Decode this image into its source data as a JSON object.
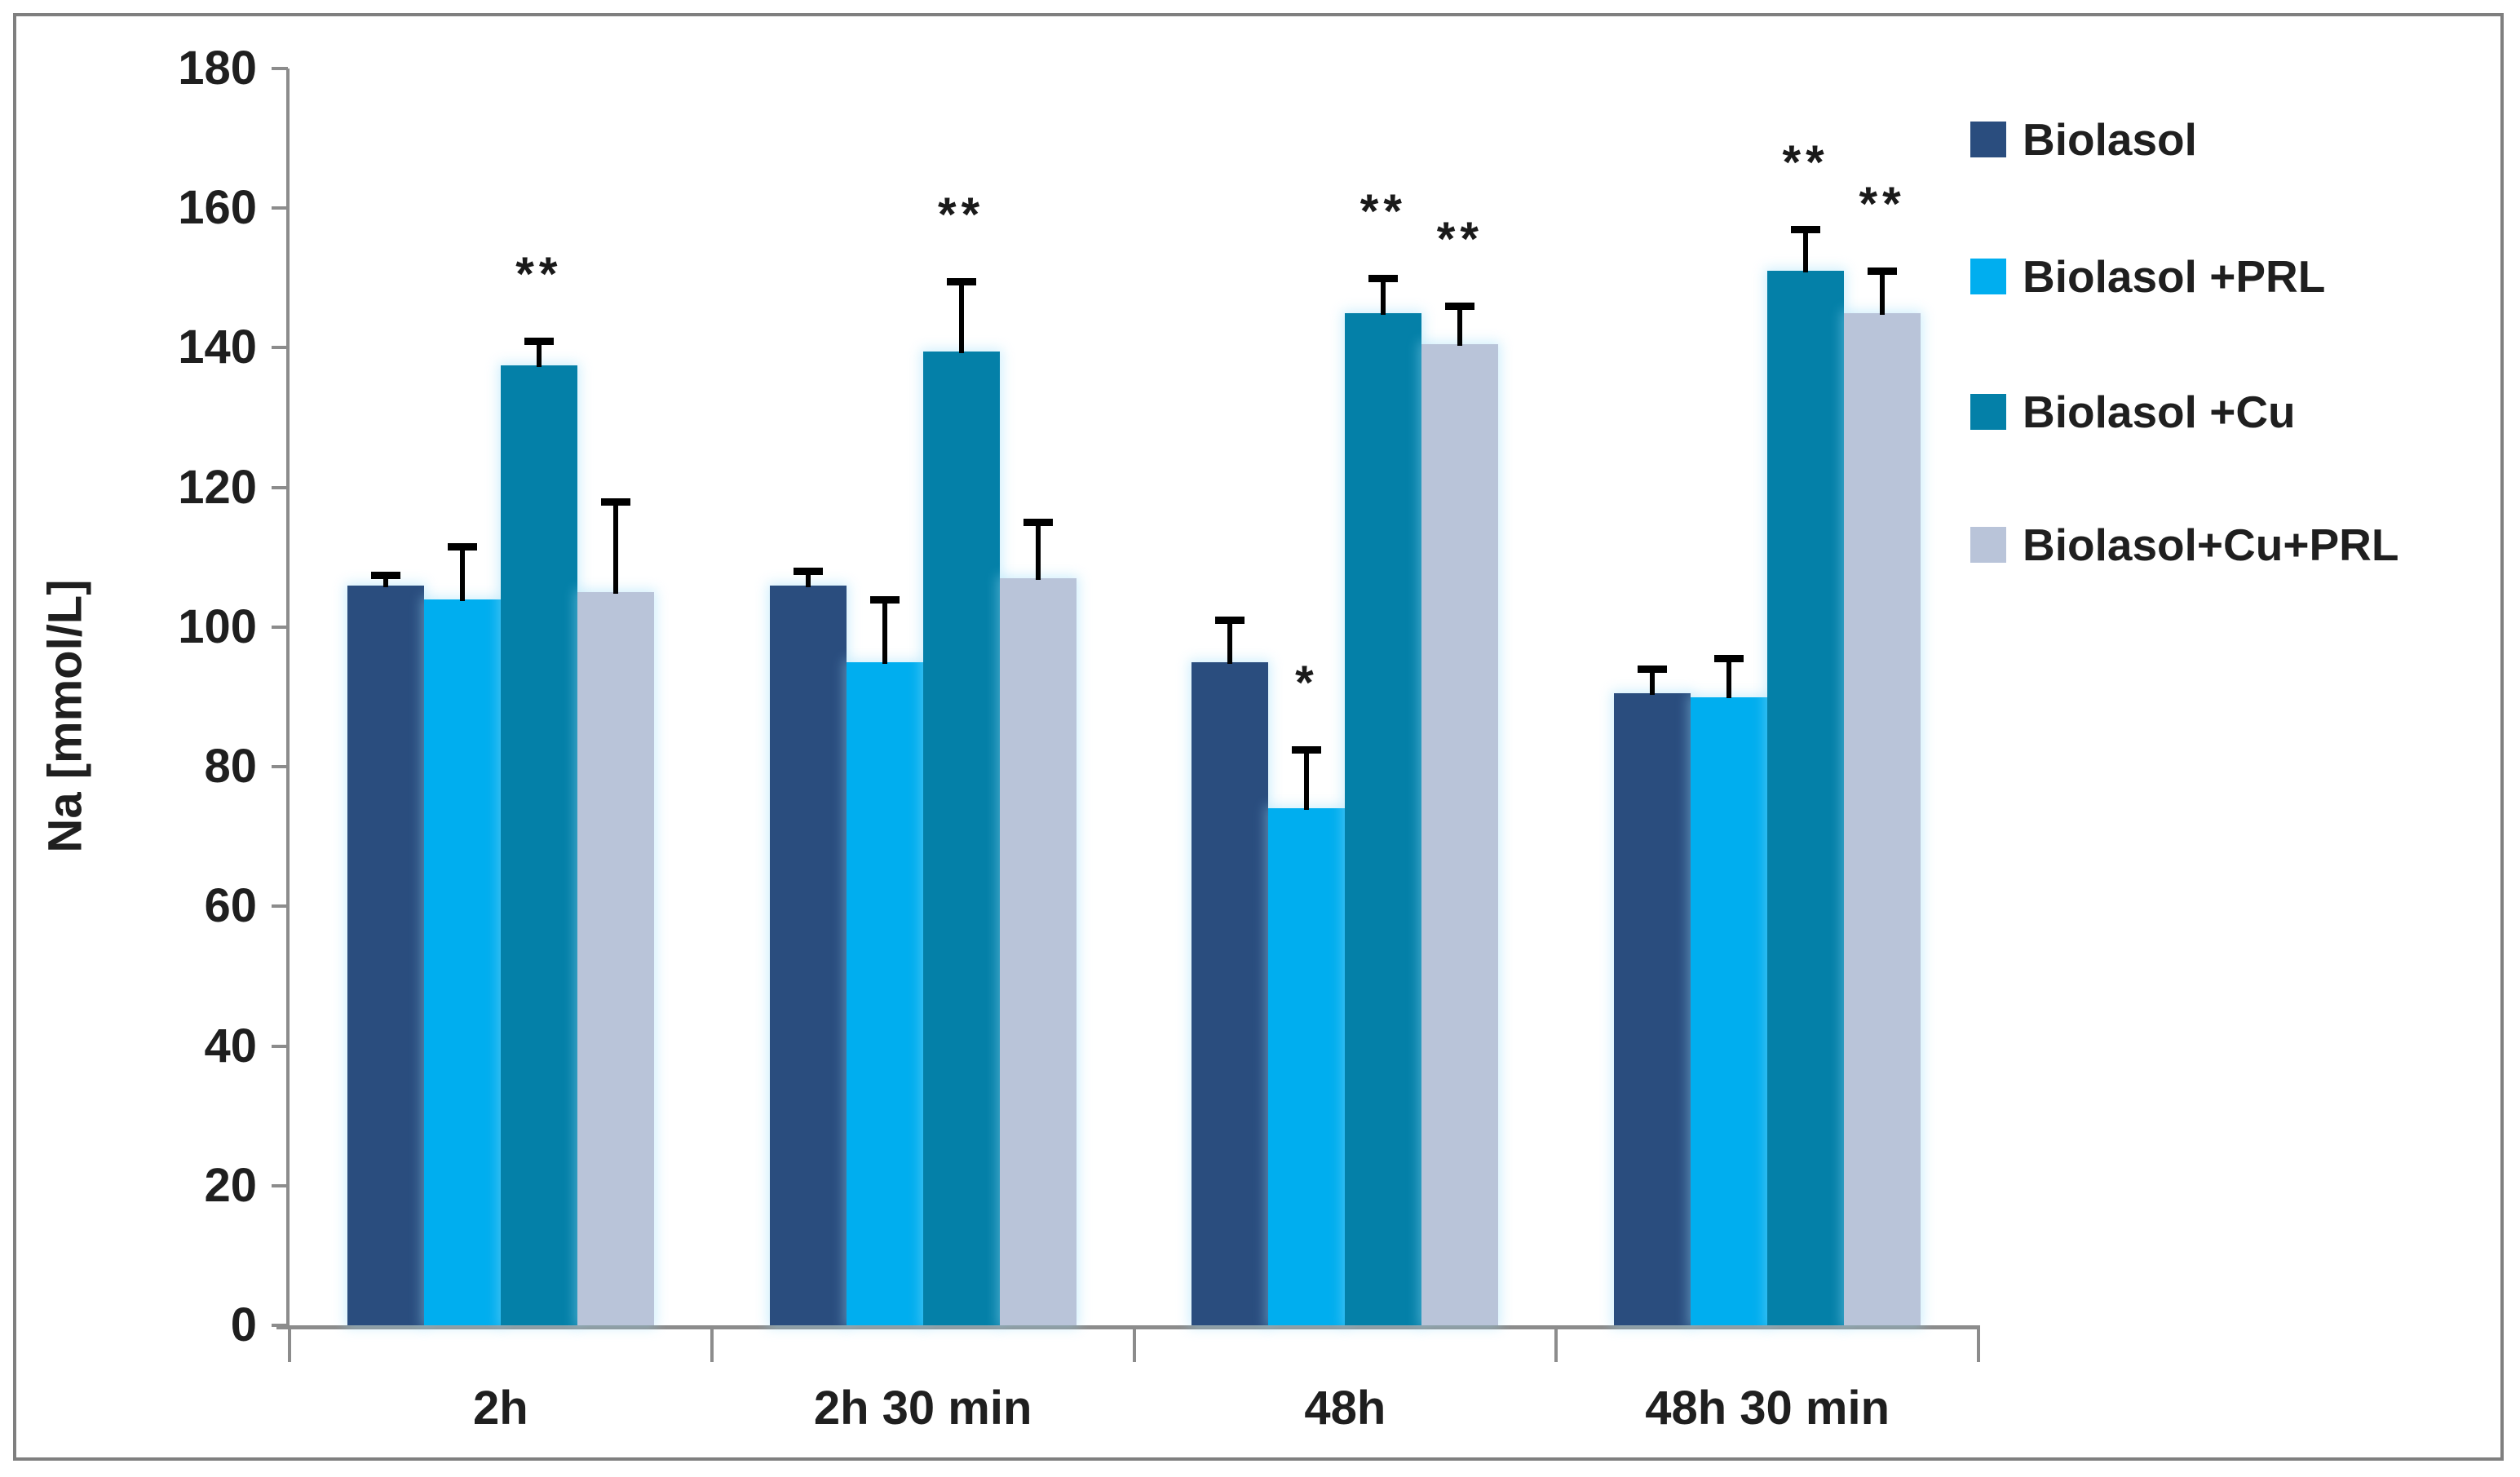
{
  "chart_data": {
    "type": "bar",
    "title": "",
    "xlabel": "",
    "ylabel": "Na [mmol/L]",
    "ylim": [
      0,
      180
    ],
    "ytick_step": 20,
    "grid": false,
    "legend_position": "right",
    "categories": [
      "2h",
      "2h 30 min",
      "48h",
      "48h 30 min"
    ],
    "series": [
      {
        "name": "Biolasol",
        "color": "#2A4D7E",
        "values": [
          106,
          106,
          95,
          90.5
        ],
        "errors_plus": [
          1.5,
          2,
          6,
          3.5
        ],
        "significance": [
          "",
          "",
          "",
          ""
        ]
      },
      {
        "name": "Biolasol +PRL",
        "color": "#00AEEF",
        "values": [
          104,
          95,
          74,
          90
        ],
        "errors_plus": [
          7.5,
          9,
          8.5,
          5.5
        ],
        "significance": [
          "",
          "",
          "*",
          ""
        ]
      },
      {
        "name": "Biolasol +Cu",
        "color": "#0480A8",
        "values": [
          137.5,
          139.5,
          145,
          151
        ],
        "errors_plus": [
          3.5,
          10,
          5,
          6
        ],
        "significance": [
          "**",
          "**",
          "**",
          "**"
        ]
      },
      {
        "name": "Biolasol+Cu+PRL",
        "color": "#B9C4D9",
        "values": [
          105,
          107,
          140.5,
          145
        ],
        "errors_plus": [
          13,
          8,
          5.5,
          6
        ],
        "significance": [
          "",
          "",
          "**",
          "**"
        ]
      }
    ],
    "error_bar_color": "#000000",
    "axis_color": "#8c8c8c",
    "tick_label_color": "#1f1f1f",
    "frame_border_color": "#7f7f7f"
  }
}
